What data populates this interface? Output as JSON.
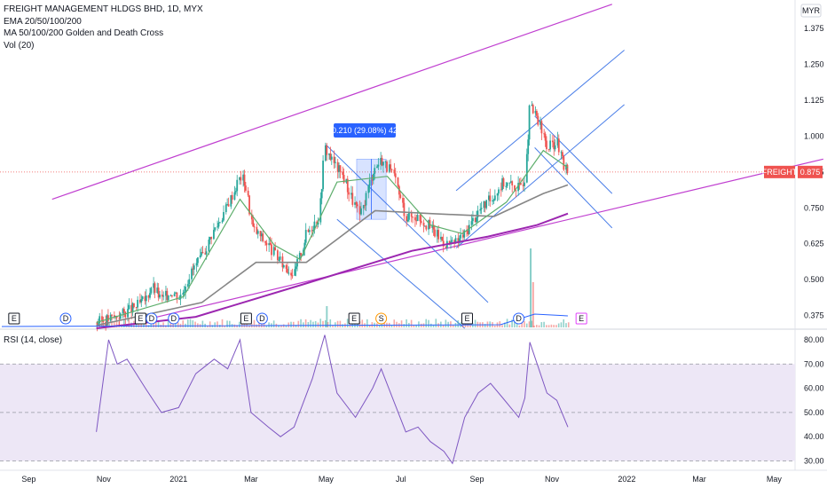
{
  "legend": {
    "title": "FREIGHT MANAGEMENT HLDGS BHD, 1D, MYX",
    "line2": "EMA 20/50/100/200",
    "line3": "MA 50/100/200 Golden and Death Cross",
    "line4": "Vol (20)",
    "rsi": "RSI (14, close)"
  },
  "currency": "MYR",
  "symbol_tag": "FREIGHT",
  "last_price_label": "0.875",
  "measure_label": "0.210 (29.08%) 42",
  "chart_data": [
    {
      "type": "candlestick",
      "title": "FREIGHT MANAGEMENT HLDGS BHD, 1D, MYX",
      "x_ticks": [
        "Sep",
        "Nov",
        "2021",
        "Mar",
        "May",
        "Jul",
        "Sep",
        "Nov",
        "2022",
        "Mar",
        "May"
      ],
      "y_ticks": [
        "1.375",
        "1.250",
        "1.125",
        "1.000",
        "0.875",
        "0.750",
        "0.625",
        "0.500",
        "0.375"
      ],
      "ylim": [
        0.33,
        1.45
      ],
      "x_range": [
        "2020-08-10",
        "2022-06-10"
      ],
      "last_close": 0.875,
      "price_path": [
        [
          "2020-10-26",
          0.35
        ],
        [
          "2020-11-10",
          0.37
        ],
        [
          "2020-11-25",
          0.4
        ],
        [
          "2020-12-05",
          0.43
        ],
        [
          "2020-12-10",
          0.48
        ],
        [
          "2020-12-18",
          0.43
        ],
        [
          "2020-12-26",
          0.46
        ],
        [
          "2021-01-02",
          0.44
        ],
        [
          "2021-01-10",
          0.52
        ],
        [
          "2021-01-20",
          0.58
        ],
        [
          "2021-01-28",
          0.66
        ],
        [
          "2021-02-05",
          0.72
        ],
        [
          "2021-02-14",
          0.8
        ],
        [
          "2021-02-20",
          0.86
        ],
        [
          "2021-02-24",
          0.84
        ],
        [
          "2021-03-02",
          0.68
        ],
        [
          "2021-03-15",
          0.62
        ],
        [
          "2021-03-25",
          0.56
        ],
        [
          "2021-04-05",
          0.52
        ],
        [
          "2021-04-15",
          0.66
        ],
        [
          "2021-04-25",
          0.72
        ],
        [
          "2021-04-30",
          0.96
        ],
        [
          "2021-05-08",
          0.9
        ],
        [
          "2021-05-15",
          0.86
        ],
        [
          "2021-05-22",
          0.78
        ],
        [
          "2021-05-29",
          0.72
        ],
        [
          "2021-06-08",
          0.88
        ],
        [
          "2021-06-15",
          0.92
        ],
        [
          "2021-06-25",
          0.86
        ],
        [
          "2021-07-05",
          0.72
        ],
        [
          "2021-07-15",
          0.72
        ],
        [
          "2021-07-25",
          0.68
        ],
        [
          "2021-08-05",
          0.63
        ],
        [
          "2021-08-12",
          0.62
        ],
        [
          "2021-08-22",
          0.66
        ],
        [
          "2021-09-02",
          0.74
        ],
        [
          "2021-09-12",
          0.78
        ],
        [
          "2021-09-22",
          0.84
        ],
        [
          "2021-10-05",
          0.82
        ],
        [
          "2021-10-10",
          0.86
        ],
        [
          "2021-10-14",
          1.1
        ],
        [
          "2021-10-20",
          1.06
        ],
        [
          "2021-10-28",
          0.96
        ],
        [
          "2021-11-05",
          0.98
        ],
        [
          "2021-11-10",
          0.9
        ],
        [
          "2021-11-14",
          0.875
        ]
      ],
      "ema_green": [
        [
          "2020-10-26",
          0.35
        ],
        [
          "2021-01-05",
          0.44
        ],
        [
          "2021-02-20",
          0.78
        ],
        [
          "2021-03-20",
          0.62
        ],
        [
          "2021-04-10",
          0.57
        ],
        [
          "2021-05-10",
          0.84
        ],
        [
          "2021-06-20",
          0.86
        ],
        [
          "2021-07-25",
          0.69
        ],
        [
          "2021-08-20",
          0.66
        ],
        [
          "2021-09-25",
          0.77
        ],
        [
          "2021-10-25",
          0.95
        ],
        [
          "2021-11-14",
          0.89
        ]
      ],
      "ema_gray": [
        [
          "2020-10-26",
          0.34
        ],
        [
          "2021-01-20",
          0.42
        ],
        [
          "2021-03-05",
          0.56
        ],
        [
          "2021-04-15",
          0.56
        ],
        [
          "2021-06-10",
          0.74
        ],
        [
          "2021-07-25",
          0.73
        ],
        [
          "2021-09-15",
          0.72
        ],
        [
          "2021-10-25",
          0.8
        ],
        [
          "2021-11-14",
          0.83
        ]
      ],
      "ema_purple": [
        [
          "2020-10-26",
          0.33
        ],
        [
          "2021-01-15",
          0.37
        ],
        [
          "2021-04-10",
          0.48
        ],
        [
          "2021-07-10",
          0.6
        ],
        [
          "2021-09-10",
          0.65
        ],
        [
          "2021-10-20",
          0.69
        ],
        [
          "2021-11-14",
          0.73
        ]
      ]
    },
    {
      "type": "line",
      "title": "RSI (14, close)",
      "y_ticks": [
        "80.00",
        "70.00",
        "60.00",
        "50.00",
        "40.00",
        "30.00"
      ],
      "ylim": [
        28,
        84
      ],
      "bands": [
        30,
        50,
        70
      ],
      "values": [
        [
          "2020-10-26",
          42
        ],
        [
          "2020-11-05",
          80
        ],
        [
          "2020-11-12",
          70
        ],
        [
          "2020-11-20",
          72
        ],
        [
          "2020-12-05",
          60
        ],
        [
          "2020-12-18",
          50
        ],
        [
          "2021-01-01",
          52
        ],
        [
          "2021-01-15",
          66
        ],
        [
          "2021-01-30",
          72
        ],
        [
          "2021-02-10",
          68
        ],
        [
          "2021-02-20",
          80
        ],
        [
          "2021-03-01",
          50
        ],
        [
          "2021-03-15",
          44
        ],
        [
          "2021-03-25",
          40
        ],
        [
          "2021-04-05",
          44
        ],
        [
          "2021-04-20",
          64
        ],
        [
          "2021-04-30",
          82
        ],
        [
          "2021-05-10",
          58
        ],
        [
          "2021-05-25",
          48
        ],
        [
          "2021-06-08",
          60
        ],
        [
          "2021-06-15",
          68
        ],
        [
          "2021-06-25",
          55
        ],
        [
          "2021-07-05",
          42
        ],
        [
          "2021-07-15",
          44
        ],
        [
          "2021-07-25",
          38
        ],
        [
          "2021-08-05",
          34
        ],
        [
          "2021-08-12",
          29
        ],
        [
          "2021-08-22",
          48
        ],
        [
          "2021-09-02",
          58
        ],
        [
          "2021-09-12",
          62
        ],
        [
          "2021-09-22",
          56
        ],
        [
          "2021-10-05",
          48
        ],
        [
          "2021-10-10",
          56
        ],
        [
          "2021-10-14",
          79
        ],
        [
          "2021-10-20",
          70
        ],
        [
          "2021-10-28",
          58
        ],
        [
          "2021-11-05",
          55
        ],
        [
          "2021-11-14",
          44
        ]
      ]
    }
  ],
  "event_markers": [
    {
      "label": "E",
      "date": "2020-08-20",
      "kind": "earnings"
    },
    {
      "label": "D",
      "date": "2020-10-01",
      "kind": "dividend"
    },
    {
      "label": "E",
      "date": "2020-12-01",
      "kind": "earnings"
    },
    {
      "label": "D",
      "date": "2020-12-10",
      "kind": "dividend"
    },
    {
      "label": "D",
      "date": "2020-12-28",
      "kind": "dividend"
    },
    {
      "label": "E",
      "date": "2021-02-25",
      "kind": "earnings"
    },
    {
      "label": "D",
      "date": "2021-03-10",
      "kind": "dividend"
    },
    {
      "label": "E",
      "date": "2021-05-24",
      "kind": "earnings"
    },
    {
      "label": "S",
      "date": "2021-06-15",
      "kind": "split"
    },
    {
      "label": "E",
      "date": "2021-08-24",
      "kind": "earnings"
    },
    {
      "label": "D",
      "date": "2021-10-05",
      "kind": "dividend"
    },
    {
      "label": "E",
      "date": "2021-11-25",
      "kind": "earnings-future"
    }
  ],
  "colors": {
    "up": "#26a69a",
    "down": "#ef5350",
    "trend_purple": "#c03fd0",
    "channel_blue": "#4a7ee8",
    "ema_green": "#5eae6c",
    "ema_gray": "#868686",
    "ema_purple": "#9c27b0",
    "rsi_line": "#7e57c2",
    "rsi_band": "#ede7f6",
    "price_tag": "#ef5350",
    "measure_box": "#2962ff"
  }
}
